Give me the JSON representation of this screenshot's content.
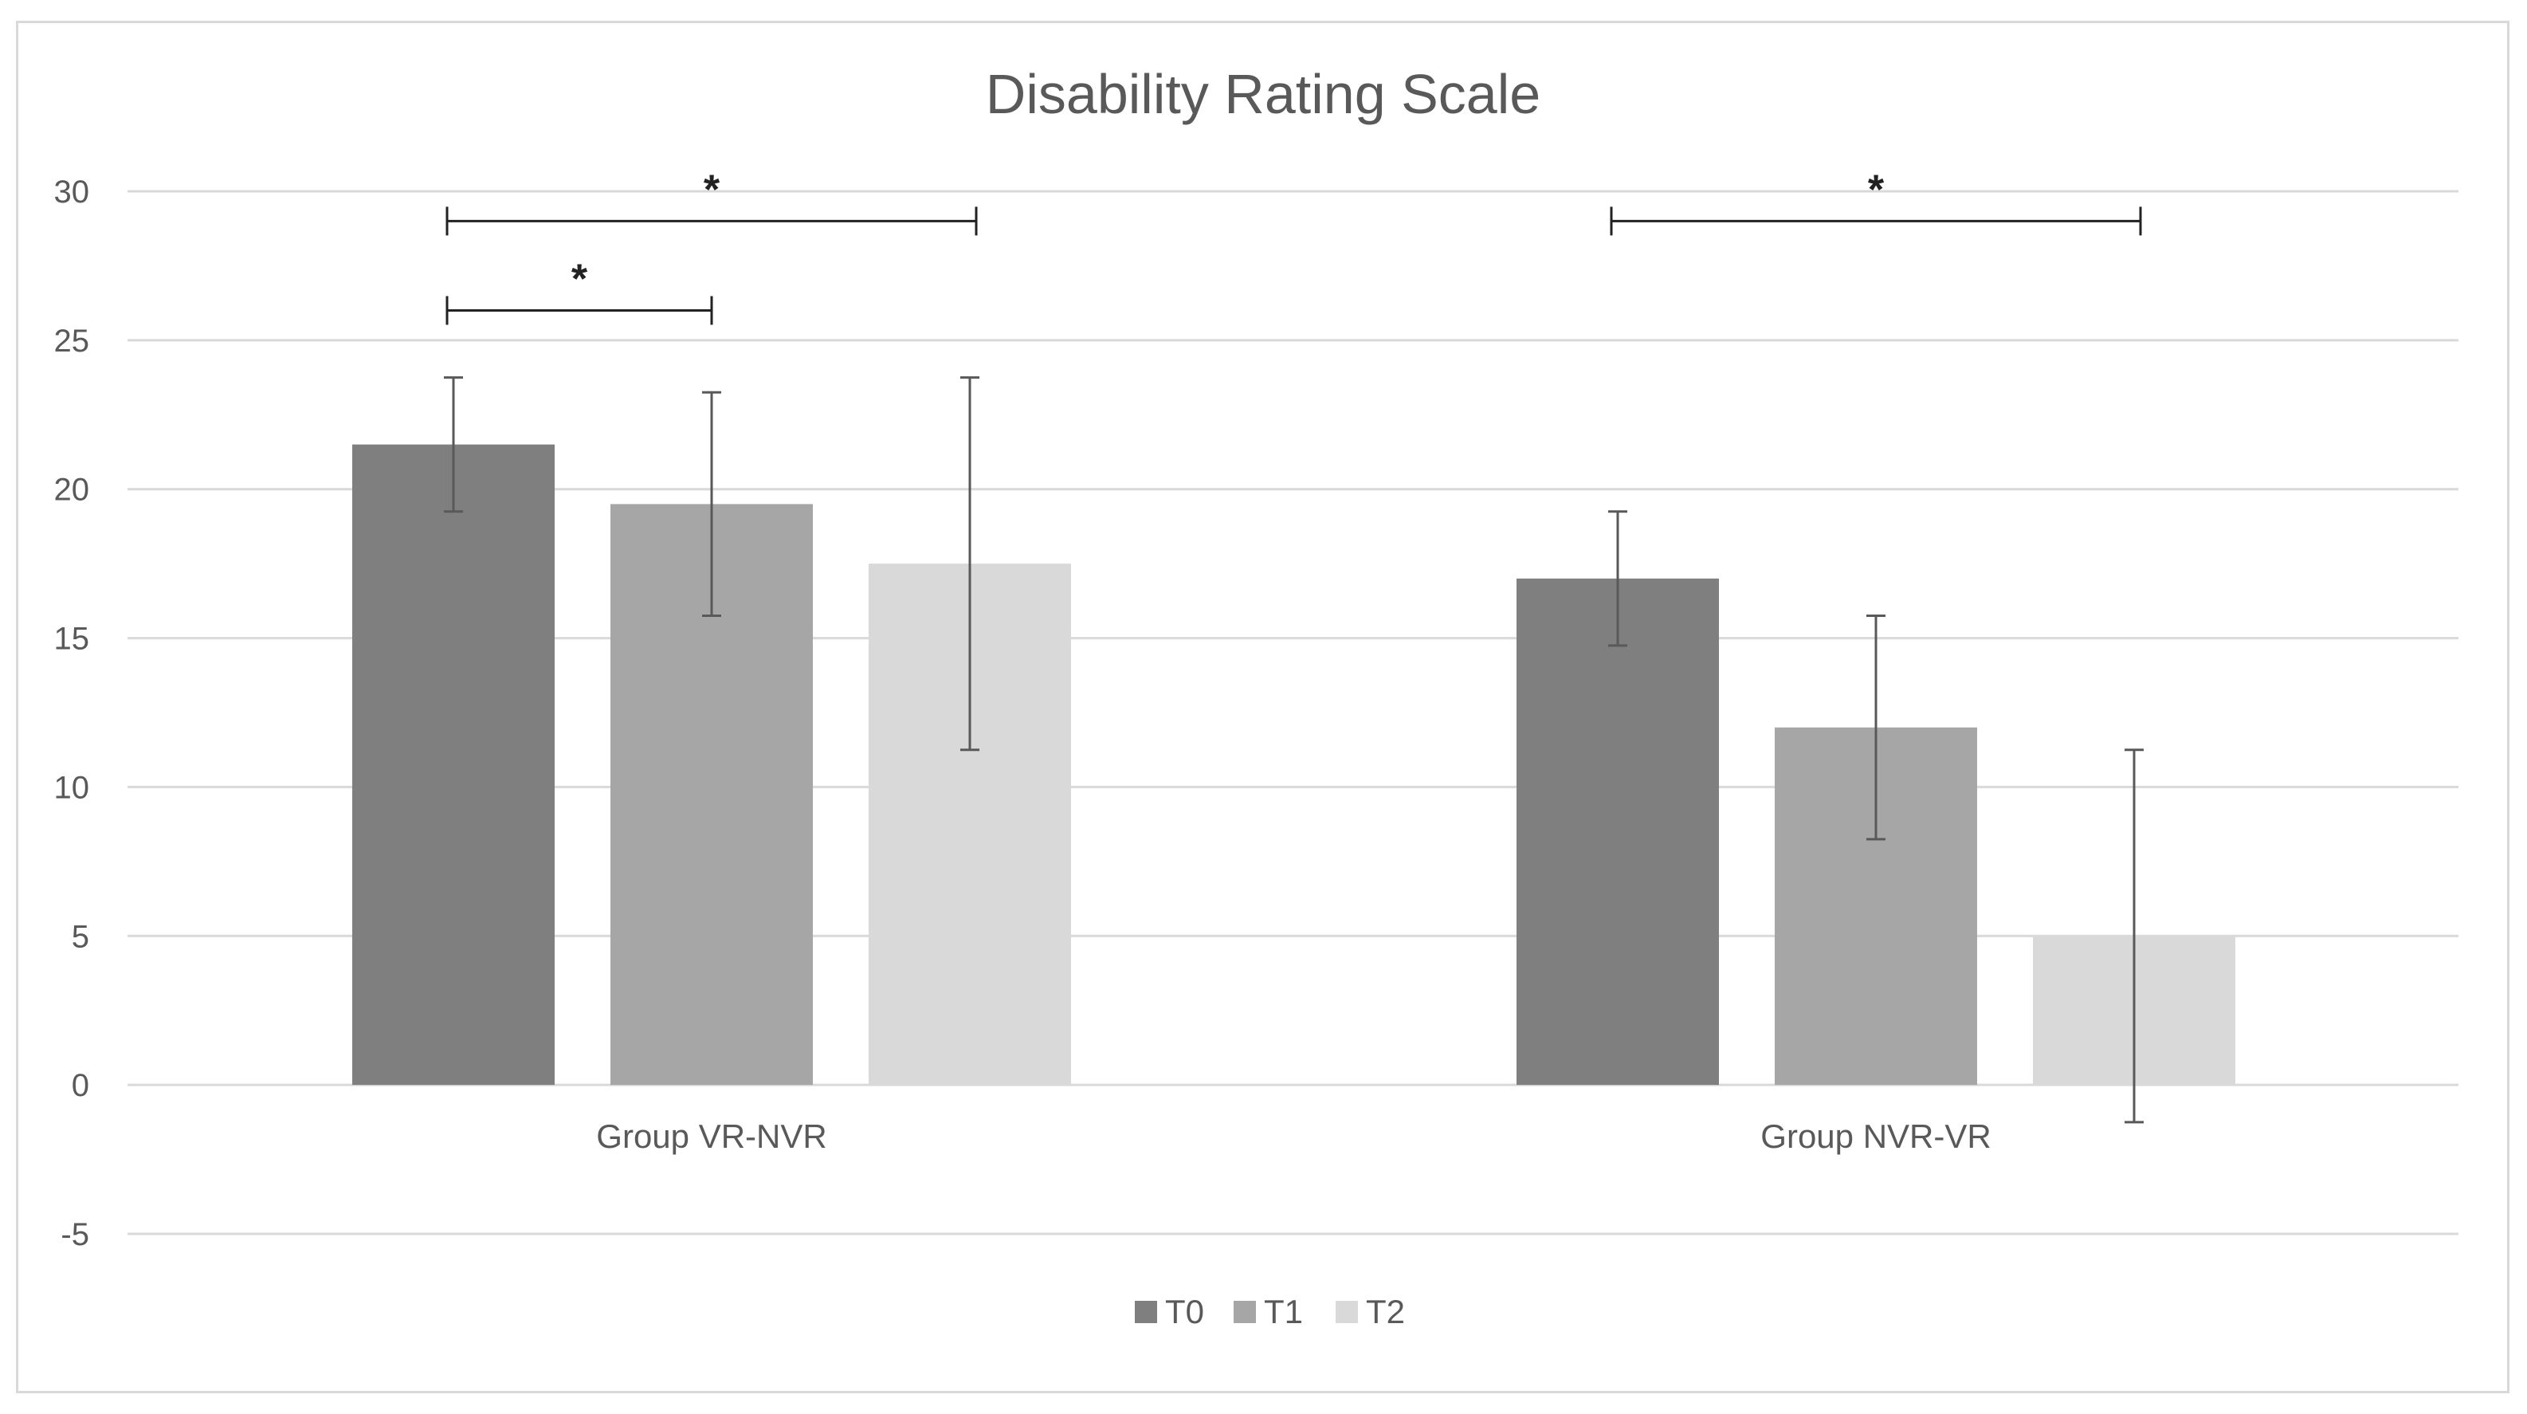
{
  "chart_data": {
    "type": "bar",
    "title": "Disability Rating Scale",
    "xlabel": "",
    "ylabel": "",
    "ylim": [
      -5,
      30
    ],
    "yticks": [
      30,
      25,
      20,
      15,
      10,
      5,
      0,
      -5
    ],
    "grid": true,
    "legend_position": "bottom-center",
    "categories": [
      "Group VR-NVR",
      "Group NVR-VR"
    ],
    "series": [
      {
        "name": "T0",
        "color": "#7f7f7f",
        "values": [
          21.5,
          17.0
        ],
        "errors": [
          2.25,
          2.25
        ]
      },
      {
        "name": "T1",
        "color": "#a6a6a6",
        "values": [
          19.5,
          12.0
        ],
        "errors": [
          3.75,
          3.75
        ]
      },
      {
        "name": "T2",
        "color": "#d9d9d9",
        "values": [
          17.5,
          5.0
        ],
        "errors": [
          6.25,
          6.25
        ]
      }
    ],
    "significance": [
      {
        "category": 0,
        "from_series": 0,
        "to_series": 2,
        "label": "*",
        "level": 29
      },
      {
        "category": 0,
        "from_series": 0,
        "to_series": 1,
        "label": "*",
        "level": 26
      },
      {
        "category": 1,
        "from_series": 0,
        "to_series": 2,
        "label": "*",
        "level": 29
      }
    ]
  }
}
